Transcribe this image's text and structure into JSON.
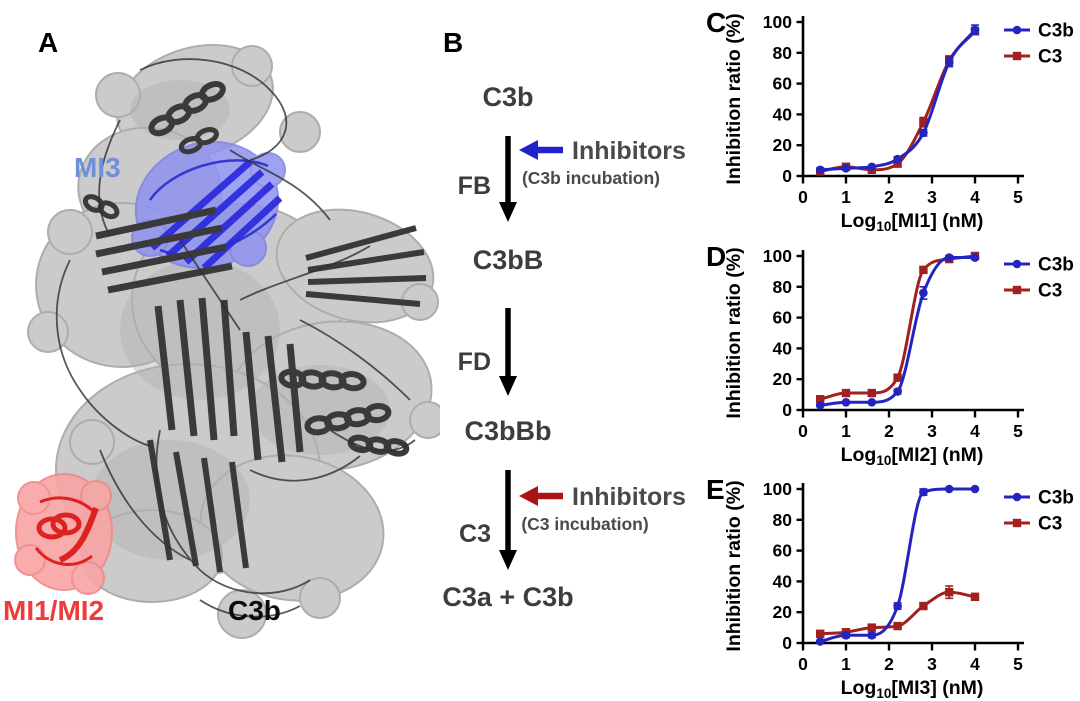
{
  "figure": {
    "background": "#ffffff"
  },
  "panelA": {
    "label": "A",
    "mi3": {
      "text": "MI3",
      "color": "#6f8fd8"
    },
    "mi1mi2": {
      "text": "MI1/MI2",
      "color": "#ee3b3b"
    },
    "c3b": {
      "text": "C3b",
      "color": "#0a0a0a"
    },
    "surface_color": "#c6c6c6",
    "cartoon_color": "#3a3a3a",
    "mi3_region_color": "#8f92ef",
    "mi3_ribbon_color": "#2d2ddd",
    "mi1mi2_region_color": "#f8a5a5",
    "mi1mi2_ribbon_color": "#dd2222"
  },
  "panelB": {
    "label": "B",
    "substrate": "C3b",
    "product1": "C3bB",
    "product2": "C3bBb",
    "product3": "C3a + C3b",
    "enzyme1": "FB",
    "enzyme2": "FD",
    "enzyme3": "C3",
    "inhibitor1": {
      "label": "Inhibitors",
      "note": "(C3b incubation)",
      "arrow_color": "#2222cc"
    },
    "inhibitor2": {
      "label": "Inhibitors",
      "note": "(C3 incubation)",
      "arrow_color": "#aa1414"
    },
    "text_color": "#3d3d3d",
    "inhibitor_text_color": "#4a4a4a",
    "arrow_color": "#000000"
  },
  "chart_data": [
    {
      "panel": "C",
      "type": "line",
      "xlabel": {
        "pre": "Log",
        "sub": "10",
        "post": "[MI1] (nM)"
      },
      "ylabel": "Inhibition ratio (%)",
      "xlim": [
        0,
        5
      ],
      "ylim": [
        0,
        100
      ],
      "xticks": [
        0,
        1,
        2,
        3,
        4,
        5
      ],
      "yticks": [
        0,
        20,
        40,
        60,
        80,
        100
      ],
      "grid": false,
      "legend_position": "top-right",
      "x": [
        0.4,
        1,
        1.6,
        2.2,
        2.8,
        3.4,
        4
      ],
      "series": [
        {
          "name": "C3b",
          "color": "#2424bf",
          "marker": "circle",
          "values": [
            4,
            5,
            6,
            11,
            28,
            74,
            95
          ],
          "err": [
            0,
            0,
            0,
            1.5,
            2,
            3,
            3
          ]
        },
        {
          "name": "C3",
          "color": "#a32020",
          "marker": "square",
          "values": [
            3,
            6,
            4,
            8,
            35,
            75,
            94
          ],
          "err": [
            0,
            1.5,
            0,
            0,
            3,
            3,
            2
          ]
        }
      ]
    },
    {
      "panel": "D",
      "type": "line",
      "xlabel": {
        "pre": "Log",
        "sub": "10",
        "post": "[MI2] (nM)"
      },
      "ylabel": "Inhibition ratio (%)",
      "xlim": [
        0,
        5
      ],
      "ylim": [
        0,
        100
      ],
      "xticks": [
        0,
        1,
        2,
        3,
        4,
        5
      ],
      "yticks": [
        0,
        20,
        40,
        60,
        80,
        100
      ],
      "grid": false,
      "legend_position": "top-right",
      "x": [
        0.4,
        1,
        1.6,
        2.2,
        2.8,
        3.4,
        4
      ],
      "series": [
        {
          "name": "C3b",
          "color": "#2424bf",
          "marker": "circle",
          "values": [
            3,
            5,
            5,
            12,
            76,
            99,
            99
          ],
          "err": [
            0,
            0,
            0,
            1.5,
            4,
            0,
            0
          ]
        },
        {
          "name": "C3",
          "color": "#a32020",
          "marker": "square",
          "values": [
            7,
            11,
            11,
            21,
            91,
            98,
            100
          ],
          "err": [
            1.5,
            1.5,
            1.5,
            2,
            2,
            0,
            0
          ]
        }
      ]
    },
    {
      "panel": "E",
      "type": "line",
      "xlabel": {
        "pre": "Log",
        "sub": "10",
        "post": "[MI3] (nM)"
      },
      "ylabel": "Inhibition ratio (%)",
      "xlim": [
        0,
        5
      ],
      "ylim": [
        0,
        100
      ],
      "xticks": [
        0,
        1,
        2,
        3,
        4,
        5
      ],
      "yticks": [
        0,
        20,
        40,
        60,
        80,
        100
      ],
      "grid": false,
      "legend_position": "top-right",
      "x": [
        0.4,
        1,
        1.6,
        2.2,
        2.8,
        3.4,
        4
      ],
      "series": [
        {
          "name": "C3b",
          "color": "#2424bf",
          "marker": "circle",
          "values": [
            1,
            5,
            5,
            24,
            98,
            100,
            100
          ],
          "err": [
            0,
            1.5,
            1.5,
            2,
            2,
            0,
            0
          ]
        },
        {
          "name": "C3",
          "color": "#a32020",
          "marker": "square",
          "values": [
            6,
            7,
            10,
            11,
            24,
            33,
            30
          ],
          "err": [
            1.5,
            1.5,
            2,
            1.5,
            2,
            4,
            2
          ]
        }
      ]
    }
  ]
}
